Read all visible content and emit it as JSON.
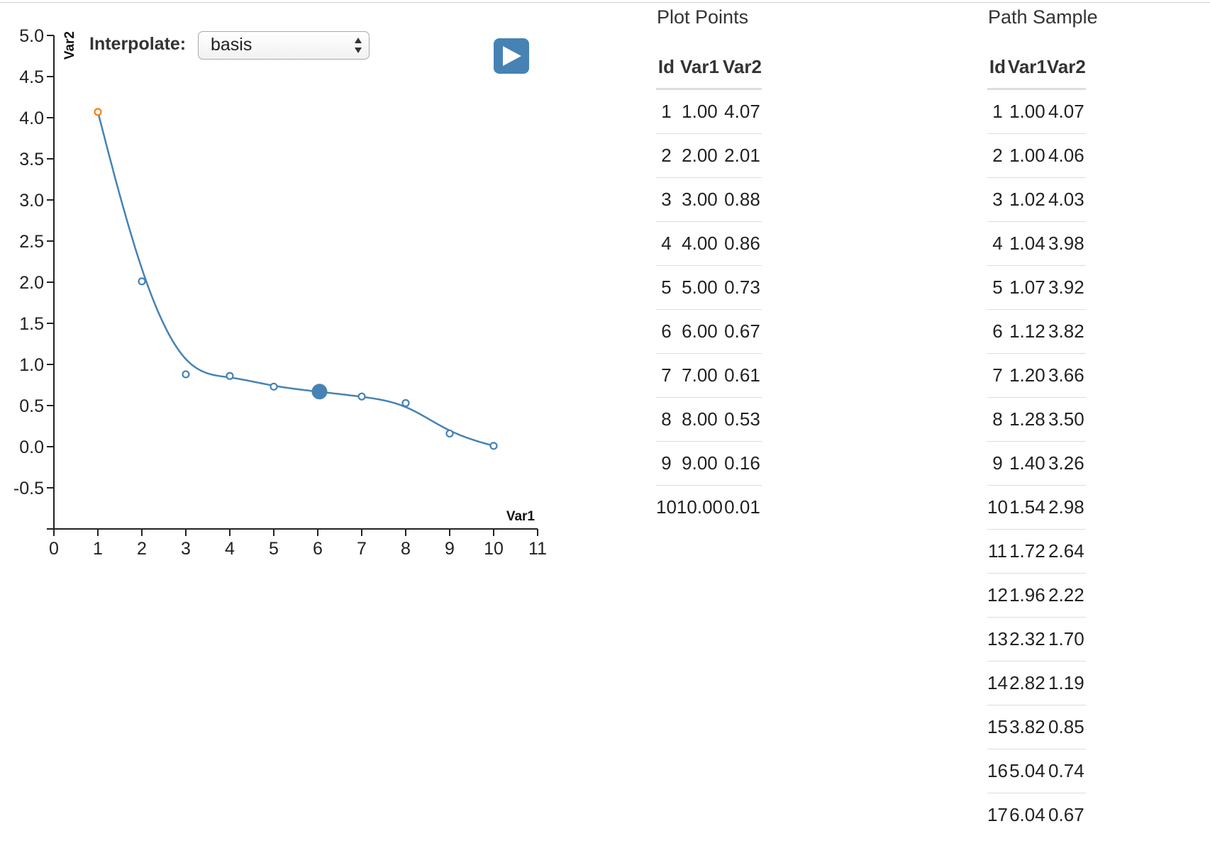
{
  "controls": {
    "interpolate_label": "Interpolate:",
    "interpolate_value": "basis"
  },
  "plot_points": {
    "caption": "Plot Points",
    "columns": [
      "Id",
      "Var1",
      "Var2"
    ],
    "rows": [
      [
        "1",
        "1.00",
        "4.07"
      ],
      [
        "2",
        "2.00",
        "2.01"
      ],
      [
        "3",
        "3.00",
        "0.88"
      ],
      [
        "4",
        "4.00",
        "0.86"
      ],
      [
        "5",
        "5.00",
        "0.73"
      ],
      [
        "6",
        "6.00",
        "0.67"
      ],
      [
        "7",
        "7.00",
        "0.61"
      ],
      [
        "8",
        "8.00",
        "0.53"
      ],
      [
        "9",
        "9.00",
        "0.16"
      ],
      [
        "10",
        "10.00",
        "0.01"
      ]
    ]
  },
  "path_sample": {
    "caption": "Path Sample",
    "columns": [
      "Id",
      "Var1",
      "Var2"
    ],
    "rows": [
      [
        "1",
        "1.00",
        "4.07"
      ],
      [
        "2",
        "1.00",
        "4.06"
      ],
      [
        "3",
        "1.02",
        "4.03"
      ],
      [
        "4",
        "1.04",
        "3.98"
      ],
      [
        "5",
        "1.07",
        "3.92"
      ],
      [
        "6",
        "1.12",
        "3.82"
      ],
      [
        "7",
        "1.20",
        "3.66"
      ],
      [
        "8",
        "1.28",
        "3.50"
      ],
      [
        "9",
        "1.40",
        "3.26"
      ],
      [
        "10",
        "1.54",
        "2.98"
      ],
      [
        "11",
        "1.72",
        "2.64"
      ],
      [
        "12",
        "1.96",
        "2.22"
      ],
      [
        "13",
        "2.32",
        "1.70"
      ],
      [
        "14",
        "2.82",
        "1.19"
      ],
      [
        "15",
        "3.82",
        "0.85"
      ],
      [
        "16",
        "5.04",
        "0.74"
      ],
      [
        "17",
        "6.04",
        "0.67"
      ]
    ]
  },
  "chart_data": {
    "type": "line",
    "xlabel": "Var1",
    "ylabel": "Var2",
    "xlim": [
      0,
      11
    ],
    "ylim": [
      -1,
      5
    ],
    "x_ticks": [
      "0",
      "1",
      "2",
      "3",
      "4",
      "5",
      "6",
      "7",
      "8",
      "9",
      "10",
      "11"
    ],
    "y_ticks": [
      "5.0",
      "4.5",
      "4.0",
      "3.5",
      "3.0",
      "2.5",
      "2.0",
      "1.5",
      "1.0",
      "0.5",
      "0.0",
      "-0.5"
    ],
    "interpolation": "basis",
    "points": [
      {
        "x": 1,
        "y": 4.07
      },
      {
        "x": 2,
        "y": 2.01
      },
      {
        "x": 3,
        "y": 0.88
      },
      {
        "x": 4,
        "y": 0.86
      },
      {
        "x": 5,
        "y": 0.73
      },
      {
        "x": 6,
        "y": 0.67
      },
      {
        "x": 7,
        "y": 0.61
      },
      {
        "x": 8,
        "y": 0.53
      },
      {
        "x": 9,
        "y": 0.16
      },
      {
        "x": 10,
        "y": 0.01
      }
    ],
    "highlighted_point": {
      "x": 1,
      "y": 4.07
    },
    "marker_position": {
      "x": 6.04,
      "y": 0.67
    },
    "colors": {
      "line": "#4682b4",
      "points": "#4682b4",
      "highlight": "#ff7f0e",
      "marker": "#4682b4",
      "play_button": "#4682b4"
    }
  },
  "icons": {
    "play": "play-icon",
    "select_arrows": "sort-arrows-icon"
  }
}
